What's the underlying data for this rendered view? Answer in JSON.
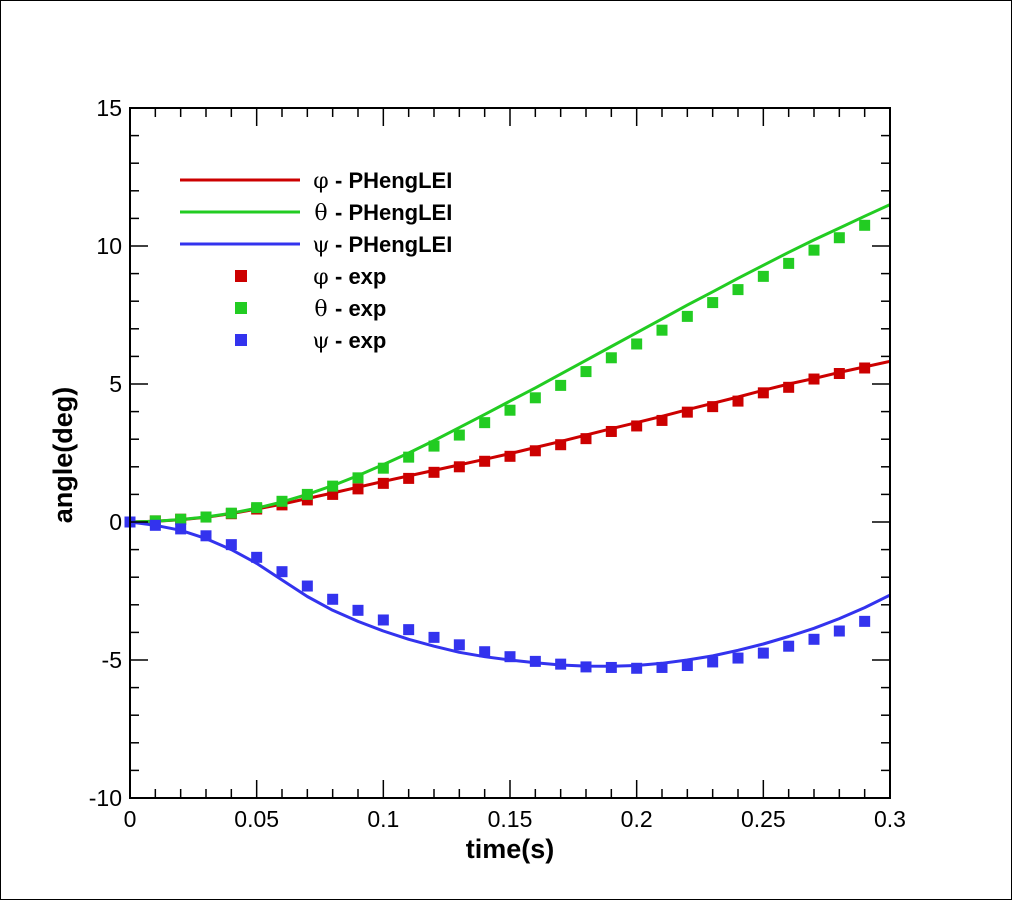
{
  "chart_data": {
    "type": "line",
    "xlabel": "time(s)",
    "ylabel": "angle(deg)",
    "xlim": [
      0,
      0.3
    ],
    "ylim": [
      -10,
      15
    ],
    "xticks": [
      0,
      0.05,
      0.1,
      0.15,
      0.2,
      0.25,
      0.3
    ],
    "xtick_labels": [
      "0",
      "0.05",
      "0.1",
      "0.15",
      "0.2",
      "0.25",
      "0.3"
    ],
    "yticks": [
      -10,
      -5,
      0,
      5,
      10,
      15
    ],
    "ytick_labels": [
      "-10",
      "-5",
      "0",
      "5",
      "10",
      "15"
    ],
    "grid": false,
    "legend_placement": "top-left",
    "series": [
      {
        "name": "φ - PHengLEI",
        "symbol": "φ",
        "label": "- PHengLEI",
        "kind": "line",
        "color": "#cc0000",
        "x": [
          0,
          0.01,
          0.02,
          0.03,
          0.04,
          0.05,
          0.06,
          0.07,
          0.08,
          0.09,
          0.1,
          0.11,
          0.12,
          0.13,
          0.14,
          0.15,
          0.16,
          0.17,
          0.18,
          0.19,
          0.2,
          0.21,
          0.22,
          0.23,
          0.24,
          0.25,
          0.26,
          0.27,
          0.28,
          0.29,
          0.3
        ],
        "y": [
          0,
          0.03,
          0.08,
          0.17,
          0.3,
          0.47,
          0.65,
          0.85,
          1.05,
          1.26,
          1.47,
          1.67,
          1.87,
          2.07,
          2.27,
          2.48,
          2.7,
          2.92,
          3.15,
          3.38,
          3.6,
          3.83,
          4.07,
          4.3,
          4.53,
          4.77,
          5.0,
          5.2,
          5.42,
          5.62,
          5.82
        ]
      },
      {
        "name": "θ - PHengLEI",
        "symbol": "θ",
        "label": "- PHengLEI",
        "kind": "line",
        "color": "#22cc22",
        "x": [
          0,
          0.01,
          0.02,
          0.03,
          0.04,
          0.05,
          0.06,
          0.07,
          0.08,
          0.09,
          0.1,
          0.11,
          0.12,
          0.13,
          0.14,
          0.15,
          0.16,
          0.17,
          0.18,
          0.19,
          0.2,
          0.21,
          0.22,
          0.23,
          0.24,
          0.25,
          0.26,
          0.27,
          0.28,
          0.29,
          0.3
        ],
        "y": [
          0,
          0.03,
          0.09,
          0.18,
          0.32,
          0.5,
          0.73,
          1.0,
          1.32,
          1.68,
          2.08,
          2.5,
          2.95,
          3.42,
          3.9,
          4.38,
          4.86,
          5.36,
          5.86,
          6.36,
          6.86,
          7.36,
          7.86,
          8.34,
          8.83,
          9.3,
          9.77,
          10.22,
          10.65,
          11.08,
          11.5
        ]
      },
      {
        "name": "ψ - PHengLEI",
        "symbol": "ψ",
        "label": "- PHengLEI",
        "kind": "line",
        "color": "#3333ee",
        "x": [
          0,
          0.01,
          0.02,
          0.03,
          0.04,
          0.05,
          0.06,
          0.07,
          0.08,
          0.09,
          0.1,
          0.11,
          0.12,
          0.13,
          0.14,
          0.15,
          0.16,
          0.17,
          0.18,
          0.19,
          0.2,
          0.21,
          0.22,
          0.23,
          0.24,
          0.25,
          0.26,
          0.27,
          0.28,
          0.29,
          0.3
        ],
        "y": [
          0,
          -0.12,
          -0.3,
          -0.6,
          -1.0,
          -1.5,
          -2.1,
          -2.7,
          -3.2,
          -3.6,
          -3.95,
          -4.25,
          -4.5,
          -4.72,
          -4.88,
          -5.0,
          -5.1,
          -5.18,
          -5.22,
          -5.23,
          -5.2,
          -5.12,
          -5.0,
          -4.85,
          -4.65,
          -4.42,
          -4.15,
          -3.85,
          -3.5,
          -3.1,
          -2.65
        ]
      },
      {
        "name": "φ - exp",
        "symbol": "φ",
        "label": "- exp",
        "kind": "marker",
        "color": "#cc0000",
        "x": [
          0,
          0.01,
          0.02,
          0.03,
          0.04,
          0.05,
          0.06,
          0.07,
          0.08,
          0.09,
          0.1,
          0.11,
          0.12,
          0.13,
          0.14,
          0.15,
          0.16,
          0.17,
          0.18,
          0.19,
          0.2,
          0.21,
          0.22,
          0.23,
          0.24,
          0.25,
          0.26,
          0.27,
          0.28,
          0.29
        ],
        "y": [
          0,
          0.04,
          0.1,
          0.18,
          0.3,
          0.47,
          0.62,
          0.8,
          1.0,
          1.2,
          1.4,
          1.58,
          1.8,
          2.0,
          2.2,
          2.38,
          2.58,
          2.8,
          3.02,
          3.28,
          3.48,
          3.68,
          3.98,
          4.18,
          4.38,
          4.68,
          4.88,
          5.18,
          5.38,
          5.58
        ]
      },
      {
        "name": "θ - exp",
        "symbol": "θ",
        "label": "- exp",
        "kind": "marker",
        "color": "#22cc22",
        "x": [
          0,
          0.01,
          0.02,
          0.03,
          0.04,
          0.05,
          0.06,
          0.07,
          0.08,
          0.09,
          0.1,
          0.11,
          0.12,
          0.13,
          0.14,
          0.15,
          0.16,
          0.17,
          0.18,
          0.19,
          0.2,
          0.21,
          0.22,
          0.23,
          0.24,
          0.25,
          0.26,
          0.27,
          0.28,
          0.29
        ],
        "y": [
          0,
          0.04,
          0.1,
          0.18,
          0.32,
          0.52,
          0.75,
          1.0,
          1.3,
          1.6,
          1.95,
          2.35,
          2.75,
          3.15,
          3.6,
          4.05,
          4.5,
          4.95,
          5.45,
          5.95,
          6.45,
          6.95,
          7.45,
          7.95,
          8.42,
          8.9,
          9.37,
          9.85,
          10.3,
          10.75
        ]
      },
      {
        "name": "ψ - exp",
        "symbol": "ψ",
        "label": "- exp",
        "kind": "marker",
        "color": "#3333ee",
        "x": [
          0,
          0.01,
          0.02,
          0.03,
          0.04,
          0.05,
          0.06,
          0.07,
          0.08,
          0.09,
          0.1,
          0.11,
          0.12,
          0.13,
          0.14,
          0.15,
          0.16,
          0.17,
          0.18,
          0.19,
          0.2,
          0.21,
          0.22,
          0.23,
          0.24,
          0.25,
          0.26,
          0.27,
          0.28,
          0.29
        ],
        "y": [
          0,
          -0.12,
          -0.25,
          -0.5,
          -0.82,
          -1.28,
          -1.8,
          -2.32,
          -2.8,
          -3.2,
          -3.55,
          -3.9,
          -4.18,
          -4.45,
          -4.7,
          -4.88,
          -5.05,
          -5.15,
          -5.25,
          -5.27,
          -5.3,
          -5.27,
          -5.2,
          -5.07,
          -4.93,
          -4.75,
          -4.5,
          -4.25,
          -3.95,
          -3.6
        ]
      }
    ]
  }
}
